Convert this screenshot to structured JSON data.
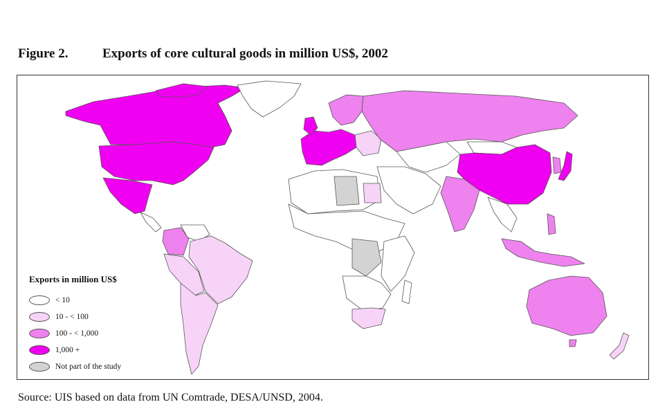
{
  "figure": {
    "number": "Figure 2.",
    "title": "Exports of core cultural goods in million US$, 2002"
  },
  "legend": {
    "title": "Exports in million US$",
    "items": [
      {
        "label": "< 10",
        "color": "#ffffff"
      },
      {
        "label": "10 - < 100",
        "color": "#f7d4f7"
      },
      {
        "label": "100 - < 1,000",
        "color": "#ee82ee"
      },
      {
        "label": "1,000 +",
        "color": "#f000f0"
      },
      {
        "label": "Not part of the study",
        "color": "#d3d3d3"
      }
    ]
  },
  "colors": {
    "lt10": "#ffffff",
    "c10_100": "#f7d4f7",
    "c100_1000": "#ee82ee",
    "c1000plus": "#f000f0",
    "not_studied": "#d3d3d3"
  },
  "source": "Source:  UIS based on data from UN Comtrade, DESA/UNSD, 2004."
}
